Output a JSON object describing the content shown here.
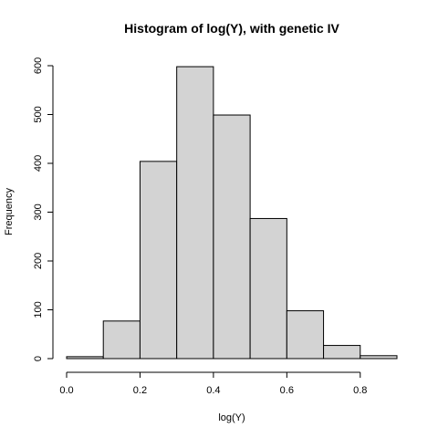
{
  "chart_data": {
    "type": "bar",
    "title": "Histogram of log(Y), with genetic IV",
    "xlabel": "log(Y)",
    "ylabel": "Frequency",
    "bins": [
      {
        "start": 0.0,
        "end": 0.1,
        "count": 4
      },
      {
        "start": 0.1,
        "end": 0.2,
        "count": 77
      },
      {
        "start": 0.2,
        "end": 0.3,
        "count": 404
      },
      {
        "start": 0.3,
        "end": 0.4,
        "count": 598
      },
      {
        "start": 0.4,
        "end": 0.5,
        "count": 499
      },
      {
        "start": 0.5,
        "end": 0.6,
        "count": 287
      },
      {
        "start": 0.6,
        "end": 0.7,
        "count": 98
      },
      {
        "start": 0.7,
        "end": 0.8,
        "count": 27
      },
      {
        "start": 0.8,
        "end": 0.9,
        "count": 6
      }
    ],
    "xlim": [
      0.0,
      0.9
    ],
    "ylim": [
      0,
      600
    ],
    "x_ticks": [
      "0.0",
      "0.2",
      "0.4",
      "0.6",
      "0.8"
    ],
    "y_ticks": [
      "0",
      "100",
      "200",
      "300",
      "400",
      "500",
      "600"
    ],
    "grid": false,
    "bar_color": "#d3d3d3",
    "edge_color": "#000000"
  }
}
